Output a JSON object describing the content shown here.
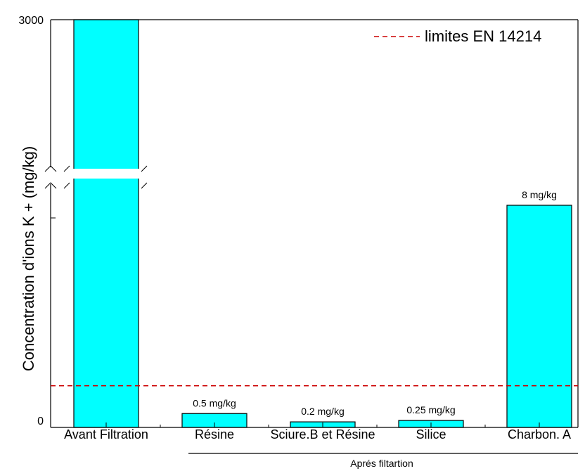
{
  "chart_data": {
    "type": "bar",
    "categories": [
      "Avant Filtration",
      "Résine",
      "Sciure.B et Résine",
      "Silice",
      "Charbon. A"
    ],
    "values": [
      3000,
      0.5,
      0.2,
      0.25,
      8
    ],
    "data_labels": [
      "",
      "0.5 mg/kg",
      "0.2 mg/kg",
      "0.25 mg/kg",
      "8 mg/kg"
    ],
    "ylabel": "Concentration d'ions K + (mg/kg)",
    "y_tick_labels": [
      "0",
      "3000"
    ],
    "broken_axis": true,
    "bar_color": "#00ffff",
    "group_label": "Aprés filtartion",
    "limit_line": {
      "label": "limites EN 14214",
      "value": 1.5,
      "color": "#cc0000",
      "style": "dashed"
    },
    "legend_position": "top-right"
  }
}
